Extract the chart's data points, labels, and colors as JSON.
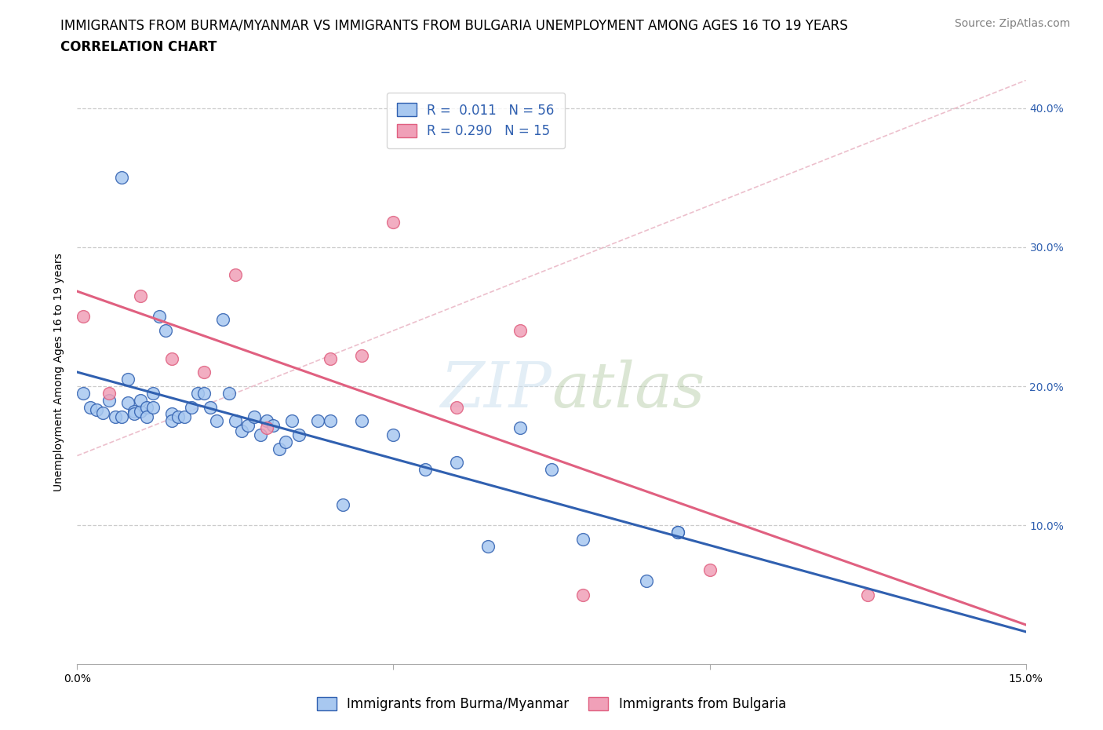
{
  "title_line1": "IMMIGRANTS FROM BURMA/MYANMAR VS IMMIGRANTS FROM BULGARIA UNEMPLOYMENT AMONG AGES 16 TO 19 YEARS",
  "title_line2": "CORRELATION CHART",
  "source_text": "Source: ZipAtlas.com",
  "ylabel": "Unemployment Among Ages 16 to 19 years",
  "xlim": [
    0.0,
    0.15
  ],
  "ylim": [
    0.0,
    0.42
  ],
  "burma_color": "#a8c8f0",
  "bulgaria_color": "#f0a0b8",
  "burma_line_color": "#3060b0",
  "bulgaria_line_color": "#e06080",
  "R_burma": 0.011,
  "N_burma": 56,
  "R_bulgaria": 0.29,
  "N_bulgaria": 15,
  "legend_label_burma": "Immigrants from Burma/Myanmar",
  "legend_label_bulgaria": "Immigrants from Bulgaria",
  "burma_x": [
    0.001,
    0.002,
    0.003,
    0.004,
    0.005,
    0.006,
    0.007,
    0.007,
    0.008,
    0.008,
    0.009,
    0.009,
    0.01,
    0.01,
    0.011,
    0.011,
    0.012,
    0.012,
    0.013,
    0.014,
    0.015,
    0.015,
    0.016,
    0.017,
    0.018,
    0.019,
    0.02,
    0.021,
    0.022,
    0.023,
    0.024,
    0.025,
    0.026,
    0.027,
    0.028,
    0.029,
    0.03,
    0.031,
    0.032,
    0.033,
    0.034,
    0.035,
    0.038,
    0.04,
    0.042,
    0.045,
    0.05,
    0.055,
    0.06,
    0.065,
    0.07,
    0.075,
    0.08,
    0.09,
    0.095,
    0.095
  ],
  "burma_y": [
    0.195,
    0.185,
    0.183,
    0.181,
    0.19,
    0.178,
    0.35,
    0.178,
    0.205,
    0.188,
    0.182,
    0.18,
    0.182,
    0.19,
    0.185,
    0.178,
    0.185,
    0.195,
    0.25,
    0.24,
    0.18,
    0.175,
    0.178,
    0.178,
    0.185,
    0.195,
    0.195,
    0.185,
    0.175,
    0.248,
    0.195,
    0.175,
    0.168,
    0.172,
    0.178,
    0.165,
    0.175,
    0.172,
    0.155,
    0.16,
    0.175,
    0.165,
    0.175,
    0.175,
    0.115,
    0.175,
    0.165,
    0.14,
    0.145,
    0.085,
    0.17,
    0.14,
    0.09,
    0.06,
    0.095,
    0.095
  ],
  "bulgaria_x": [
    0.001,
    0.005,
    0.01,
    0.015,
    0.02,
    0.025,
    0.03,
    0.04,
    0.045,
    0.05,
    0.06,
    0.07,
    0.08,
    0.1,
    0.125
  ],
  "bulgaria_y": [
    0.25,
    0.195,
    0.265,
    0.22,
    0.21,
    0.28,
    0.17,
    0.22,
    0.222,
    0.318,
    0.185,
    0.24,
    0.05,
    0.068,
    0.05
  ],
  "title_fontsize": 12,
  "subtitle_fontsize": 12,
  "axis_label_fontsize": 10,
  "tick_fontsize": 10,
  "legend_fontsize": 12,
  "source_fontsize": 10
}
